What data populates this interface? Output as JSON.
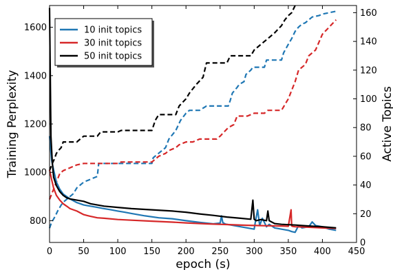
{
  "chart_data": {
    "type": "line",
    "xlabel": "epoch (s)",
    "ylabel": "Training Perplexity",
    "y2label": "Active Topics",
    "xlim": [
      0,
      450
    ],
    "ylim": [
      710,
      1690
    ],
    "y2lim": [
      0,
      165
    ],
    "xticks": [
      0,
      50,
      100,
      150,
      200,
      250,
      300,
      350,
      400,
      450
    ],
    "yticks": [
      800,
      1000,
      1200,
      1400,
      1600
    ],
    "y2ticks": [
      0,
      20,
      40,
      60,
      80,
      100,
      120,
      140,
      160
    ],
    "grid": false,
    "legend_position": "top-left",
    "series": [
      {
        "name": "10 init topics",
        "color": "#1f77b4",
        "axis": "left",
        "style": "solid",
        "x": [
          0,
          3,
          6,
          10,
          15,
          20,
          25,
          30,
          40,
          50,
          60,
          70,
          80,
          90,
          100,
          110,
          120,
          140,
          160,
          180,
          200,
          220,
          240,
          250,
          252,
          254,
          258,
          270,
          290,
          300,
          302,
          305,
          308,
          312,
          318,
          322,
          330,
          340,
          350,
          355,
          360,
          365,
          370,
          380,
          385,
          390,
          400,
          410,
          420
        ],
        "y": [
          1150,
          1050,
          1010,
          960,
          930,
          910,
          900,
          890,
          875,
          865,
          860,
          855,
          850,
          845,
          840,
          835,
          830,
          820,
          812,
          808,
          800,
          793,
          787,
          790,
          820,
          792,
          786,
          780,
          770,
          765,
          800,
          845,
          780,
          810,
          775,
          785,
          770,
          765,
          760,
          755,
          752,
          780,
          770,
          775,
          795,
          780,
          775,
          765,
          760
        ]
      },
      {
        "name": "30 init topics",
        "color": "#d62728",
        "axis": "left",
        "style": "solid",
        "x": [
          0,
          3,
          6,
          10,
          15,
          20,
          25,
          30,
          40,
          50,
          60,
          70,
          80,
          100,
          120,
          150,
          180,
          200,
          230,
          260,
          290,
          320,
          340,
          350,
          354,
          355,
          357,
          360,
          380,
          400,
          420
        ],
        "y": [
          1010,
          970,
          935,
          905,
          885,
          870,
          860,
          850,
          840,
          825,
          818,
          812,
          810,
          805,
          802,
          798,
          794,
          791,
          787,
          784,
          781,
          779,
          778,
          777,
          845,
          778,
          776,
          775,
          773,
          770,
          768
        ]
      },
      {
        "name": "50 init topics",
        "color": "#000000",
        "axis": "left",
        "style": "solid",
        "x": [
          0,
          2,
          4,
          6,
          10,
          15,
          20,
          25,
          30,
          40,
          50,
          60,
          80,
          100,
          120,
          150,
          180,
          200,
          220,
          240,
          260,
          280,
          295,
          298,
          300,
          303,
          310,
          318,
          320,
          322,
          330,
          340,
          360,
          380,
          400,
          420
        ],
        "y": [
          1680,
          1150,
          1040,
          980,
          945,
          920,
          905,
          895,
          890,
          885,
          880,
          870,
          860,
          855,
          850,
          845,
          840,
          835,
          828,
          822,
          815,
          810,
          806,
          885,
          806,
          800,
          805,
          800,
          840,
          800,
          788,
          785,
          782,
          778,
          775,
          770
        ]
      },
      {
        "name": "",
        "color": "#1f77b4",
        "axis": "right",
        "style": "dashed",
        "x": [
          0,
          3,
          8,
          12,
          17,
          20,
          25,
          30,
          35,
          40,
          50,
          70,
          72,
          150,
          152,
          170,
          175,
          185,
          192,
          200,
          205,
          215,
          220,
          230,
          262,
          265,
          268,
          275,
          278,
          285,
          288,
          295,
          298,
          315,
          318,
          340,
          343,
          350,
          355,
          360,
          365,
          370,
          375,
          380,
          385,
          395,
          400,
          410,
          420
        ],
        "y": [
          10,
          14,
          18,
          22,
          26,
          28,
          30,
          32,
          34,
          38,
          42,
          46,
          55,
          55,
          59,
          66,
          72,
          78,
          85,
          90,
          92,
          92,
          92,
          95,
          95,
          99,
          104,
          108,
          110,
          112,
          117,
          120,
          122,
          122,
          127,
          127,
          132,
          138,
          142,
          147,
          150,
          152,
          153,
          155,
          157,
          158,
          159,
          160,
          161
        ]
      },
      {
        "name": "",
        "color": "#d62728",
        "axis": "right",
        "style": "dashed",
        "x": [
          0,
          5,
          10,
          15,
          20,
          30,
          40,
          50,
          100,
          105,
          150,
          155,
          160,
          170,
          175,
          185,
          190,
          200,
          210,
          220,
          245,
          250,
          262,
          270,
          275,
          290,
          300,
          315,
          320,
          340,
          350,
          360,
          365,
          375,
          380,
          390,
          400,
          420
        ],
        "y": [
          30,
          36,
          42,
          48,
          50,
          52,
          54,
          55,
          55,
          56,
          56,
          58,
          60,
          62,
          64,
          66,
          68,
          70,
          70,
          72,
          72,
          74,
          80,
          82,
          88,
          88,
          90,
          90,
          92,
          92,
          100,
          112,
          120,
          124,
          130,
          134,
          145,
          155
        ]
      },
      {
        "name": "",
        "color": "#000000",
        "axis": "right",
        "style": "dashed",
        "x": [
          0,
          3,
          7,
          10,
          13,
          17,
          20,
          25,
          40,
          45,
          50,
          70,
          75,
          100,
          105,
          150,
          155,
          160,
          185,
          190,
          200,
          205,
          215,
          225,
          230,
          260,
          265,
          295,
          300,
          310,
          320,
          330,
          340,
          345,
          350,
          355,
          360
        ],
        "y": [
          50,
          54,
          58,
          62,
          64,
          66,
          70,
          70,
          70,
          72,
          74,
          74,
          77,
          77,
          78,
          78,
          85,
          89,
          89,
          95,
          100,
          104,
          110,
          115,
          125,
          125,
          130,
          130,
          134,
          138,
          142,
          146,
          151,
          155,
          158,
          160,
          165
        ]
      }
    ]
  }
}
